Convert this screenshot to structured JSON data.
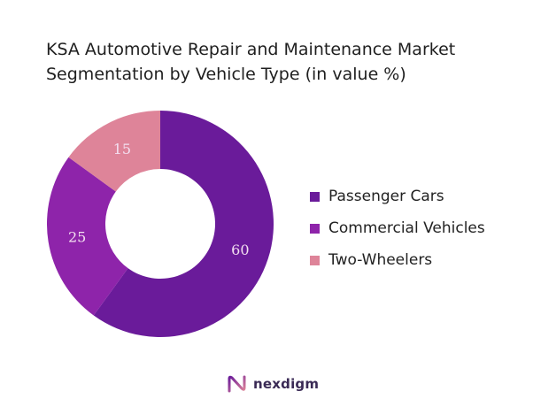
{
  "chart_data": {
    "type": "pie",
    "title_lines": [
      "KSA Automotive Repair and Maintenance Market",
      "Segmentation by Vehicle Type (in value %)"
    ],
    "series": [
      {
        "name": "Passenger Cars",
        "value": 60,
        "color": "#6a1b9a"
      },
      {
        "name": "Commercial Vehicles",
        "value": 25,
        "color": "#8e24aa"
      },
      {
        "name": "Two-Wheelers",
        "value": 15,
        "color": "#de8499"
      }
    ],
    "legend_position": "right"
  },
  "brand": {
    "name": "nexdigm",
    "logo_icon": "nexdigm-logo-icon",
    "color": "#3a2a55"
  }
}
